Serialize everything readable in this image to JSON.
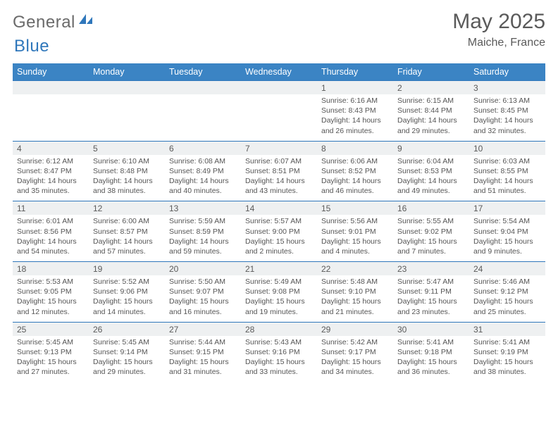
{
  "logo": {
    "general": "General",
    "blue": "Blue"
  },
  "header": {
    "month": "May 2025",
    "location": "Maiche, France"
  },
  "colors": {
    "header_bg": "#3b84c4",
    "header_text": "#ffffff",
    "border": "#2f77bb",
    "daynum_bg": "#eef0f1",
    "body_text": "#555555",
    "title_text": "#5a5a5a"
  },
  "columns": [
    "Sunday",
    "Monday",
    "Tuesday",
    "Wednesday",
    "Thursday",
    "Friday",
    "Saturday"
  ],
  "weeks": [
    [
      null,
      null,
      null,
      null,
      {
        "n": "1",
        "sunrise": "Sunrise: 6:16 AM",
        "sunset": "Sunset: 8:43 PM",
        "daylight": "Daylight: 14 hours and 26 minutes."
      },
      {
        "n": "2",
        "sunrise": "Sunrise: 6:15 AM",
        "sunset": "Sunset: 8:44 PM",
        "daylight": "Daylight: 14 hours and 29 minutes."
      },
      {
        "n": "3",
        "sunrise": "Sunrise: 6:13 AM",
        "sunset": "Sunset: 8:45 PM",
        "daylight": "Daylight: 14 hours and 32 minutes."
      }
    ],
    [
      {
        "n": "4",
        "sunrise": "Sunrise: 6:12 AM",
        "sunset": "Sunset: 8:47 PM",
        "daylight": "Daylight: 14 hours and 35 minutes."
      },
      {
        "n": "5",
        "sunrise": "Sunrise: 6:10 AM",
        "sunset": "Sunset: 8:48 PM",
        "daylight": "Daylight: 14 hours and 38 minutes."
      },
      {
        "n": "6",
        "sunrise": "Sunrise: 6:08 AM",
        "sunset": "Sunset: 8:49 PM",
        "daylight": "Daylight: 14 hours and 40 minutes."
      },
      {
        "n": "7",
        "sunrise": "Sunrise: 6:07 AM",
        "sunset": "Sunset: 8:51 PM",
        "daylight": "Daylight: 14 hours and 43 minutes."
      },
      {
        "n": "8",
        "sunrise": "Sunrise: 6:06 AM",
        "sunset": "Sunset: 8:52 PM",
        "daylight": "Daylight: 14 hours and 46 minutes."
      },
      {
        "n": "9",
        "sunrise": "Sunrise: 6:04 AM",
        "sunset": "Sunset: 8:53 PM",
        "daylight": "Daylight: 14 hours and 49 minutes."
      },
      {
        "n": "10",
        "sunrise": "Sunrise: 6:03 AM",
        "sunset": "Sunset: 8:55 PM",
        "daylight": "Daylight: 14 hours and 51 minutes."
      }
    ],
    [
      {
        "n": "11",
        "sunrise": "Sunrise: 6:01 AM",
        "sunset": "Sunset: 8:56 PM",
        "daylight": "Daylight: 14 hours and 54 minutes."
      },
      {
        "n": "12",
        "sunrise": "Sunrise: 6:00 AM",
        "sunset": "Sunset: 8:57 PM",
        "daylight": "Daylight: 14 hours and 57 minutes."
      },
      {
        "n": "13",
        "sunrise": "Sunrise: 5:59 AM",
        "sunset": "Sunset: 8:59 PM",
        "daylight": "Daylight: 14 hours and 59 minutes."
      },
      {
        "n": "14",
        "sunrise": "Sunrise: 5:57 AM",
        "sunset": "Sunset: 9:00 PM",
        "daylight": "Daylight: 15 hours and 2 minutes."
      },
      {
        "n": "15",
        "sunrise": "Sunrise: 5:56 AM",
        "sunset": "Sunset: 9:01 PM",
        "daylight": "Daylight: 15 hours and 4 minutes."
      },
      {
        "n": "16",
        "sunrise": "Sunrise: 5:55 AM",
        "sunset": "Sunset: 9:02 PM",
        "daylight": "Daylight: 15 hours and 7 minutes."
      },
      {
        "n": "17",
        "sunrise": "Sunrise: 5:54 AM",
        "sunset": "Sunset: 9:04 PM",
        "daylight": "Daylight: 15 hours and 9 minutes."
      }
    ],
    [
      {
        "n": "18",
        "sunrise": "Sunrise: 5:53 AM",
        "sunset": "Sunset: 9:05 PM",
        "daylight": "Daylight: 15 hours and 12 minutes."
      },
      {
        "n": "19",
        "sunrise": "Sunrise: 5:52 AM",
        "sunset": "Sunset: 9:06 PM",
        "daylight": "Daylight: 15 hours and 14 minutes."
      },
      {
        "n": "20",
        "sunrise": "Sunrise: 5:50 AM",
        "sunset": "Sunset: 9:07 PM",
        "daylight": "Daylight: 15 hours and 16 minutes."
      },
      {
        "n": "21",
        "sunrise": "Sunrise: 5:49 AM",
        "sunset": "Sunset: 9:08 PM",
        "daylight": "Daylight: 15 hours and 19 minutes."
      },
      {
        "n": "22",
        "sunrise": "Sunrise: 5:48 AM",
        "sunset": "Sunset: 9:10 PM",
        "daylight": "Daylight: 15 hours and 21 minutes."
      },
      {
        "n": "23",
        "sunrise": "Sunrise: 5:47 AM",
        "sunset": "Sunset: 9:11 PM",
        "daylight": "Daylight: 15 hours and 23 minutes."
      },
      {
        "n": "24",
        "sunrise": "Sunrise: 5:46 AM",
        "sunset": "Sunset: 9:12 PM",
        "daylight": "Daylight: 15 hours and 25 minutes."
      }
    ],
    [
      {
        "n": "25",
        "sunrise": "Sunrise: 5:45 AM",
        "sunset": "Sunset: 9:13 PM",
        "daylight": "Daylight: 15 hours and 27 minutes."
      },
      {
        "n": "26",
        "sunrise": "Sunrise: 5:45 AM",
        "sunset": "Sunset: 9:14 PM",
        "daylight": "Daylight: 15 hours and 29 minutes."
      },
      {
        "n": "27",
        "sunrise": "Sunrise: 5:44 AM",
        "sunset": "Sunset: 9:15 PM",
        "daylight": "Daylight: 15 hours and 31 minutes."
      },
      {
        "n": "28",
        "sunrise": "Sunrise: 5:43 AM",
        "sunset": "Sunset: 9:16 PM",
        "daylight": "Daylight: 15 hours and 33 minutes."
      },
      {
        "n": "29",
        "sunrise": "Sunrise: 5:42 AM",
        "sunset": "Sunset: 9:17 PM",
        "daylight": "Daylight: 15 hours and 34 minutes."
      },
      {
        "n": "30",
        "sunrise": "Sunrise: 5:41 AM",
        "sunset": "Sunset: 9:18 PM",
        "daylight": "Daylight: 15 hours and 36 minutes."
      },
      {
        "n": "31",
        "sunrise": "Sunrise: 5:41 AM",
        "sunset": "Sunset: 9:19 PM",
        "daylight": "Daylight: 15 hours and 38 minutes."
      }
    ]
  ]
}
